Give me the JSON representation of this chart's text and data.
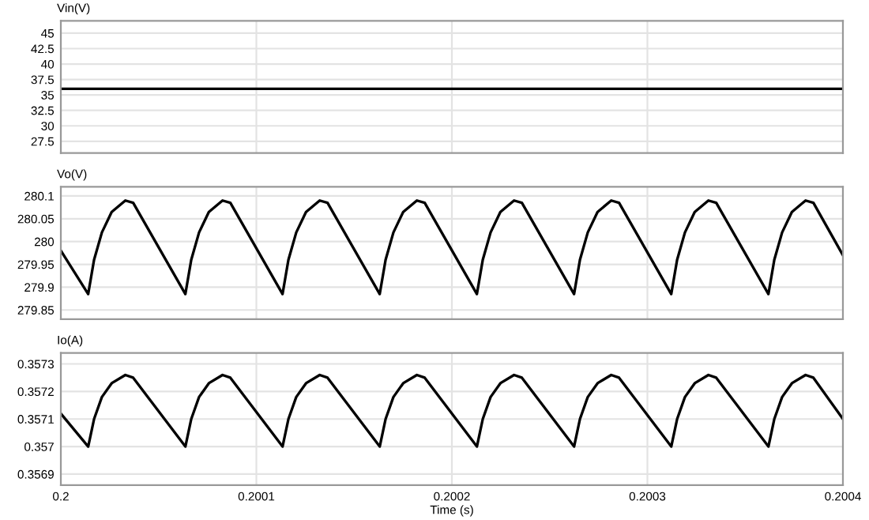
{
  "chart_data": [
    {
      "type": "line",
      "title": "Vin(V)",
      "x": [
        0.2,
        0.2004
      ],
      "series": [
        {
          "color": "#000000",
          "values": [
            36,
            36
          ]
        }
      ],
      "xlim": [
        0.2,
        0.2004
      ],
      "xticks": [
        0.2,
        0.2001,
        0.2002,
        0.2003,
        0.2004
      ],
      "ylim": [
        25.6,
        47
      ],
      "yticks": [
        27.5,
        30,
        32.5,
        35,
        37.5,
        40,
        42.5,
        45
      ],
      "grid": true,
      "tick_labels": "y",
      "marker": "none",
      "line_style": "solid"
    },
    {
      "type": "line",
      "title": "Vo(V)",
      "x": [
        0.2,
        0.200014,
        0.200017,
        0.200021,
        0.200026,
        0.200033,
        0.200037,
        0.2000637,
        0.2000667,
        0.2000707,
        0.2000757,
        0.2000827,
        0.2000867,
        0.2001134,
        0.2001164,
        0.2001204,
        0.2001254,
        0.2001324,
        0.2001364,
        0.2001631,
        0.2001661,
        0.2001701,
        0.2001751,
        0.2001821,
        0.2001861,
        0.2002128,
        0.2002158,
        0.2002198,
        0.2002248,
        0.2002318,
        0.2002358,
        0.2002625,
        0.2002655,
        0.2002695,
        0.2002745,
        0.2002815,
        0.2002855,
        0.2003122,
        0.2003152,
        0.2003192,
        0.2003242,
        0.2003312,
        0.2003352,
        0.2003619,
        0.2003649,
        0.2003689,
        0.2003739,
        0.2003809,
        0.2003849,
        0.2004
      ],
      "series": [
        {
          "color": "#000000",
          "values": [
            279.98,
            279.885,
            279.96,
            280.02,
            280.065,
            280.09,
            280.085,
            279.885,
            279.96,
            280.02,
            280.065,
            280.09,
            280.085,
            279.885,
            279.96,
            280.02,
            280.065,
            280.09,
            280.085,
            279.885,
            279.96,
            280.02,
            280.065,
            280.09,
            280.085,
            279.885,
            279.96,
            280.02,
            280.065,
            280.09,
            280.085,
            279.885,
            279.96,
            280.02,
            280.065,
            280.09,
            280.085,
            279.885,
            279.96,
            280.02,
            280.065,
            280.09,
            280.085,
            279.885,
            279.96,
            280.02,
            280.065,
            280.09,
            280.085,
            279.97
          ]
        }
      ],
      "xlim": [
        0.2,
        0.2004
      ],
      "xticks": [
        0.2,
        0.2001,
        0.2002,
        0.2003,
        0.2004
      ],
      "ylim": [
        279.83,
        280.12
      ],
      "yticks": [
        279.85,
        279.9,
        279.95,
        280,
        280.05,
        280.1
      ],
      "grid": true,
      "tick_labels": "y",
      "marker": "none",
      "line_style": "solid"
    },
    {
      "type": "line",
      "title": "Io(A)",
      "xlabel": "Time (s)",
      "x": [
        0.2,
        0.200014,
        0.200017,
        0.200021,
        0.200026,
        0.200033,
        0.200037,
        0.2000637,
        0.2000667,
        0.2000707,
        0.2000757,
        0.2000827,
        0.2000867,
        0.2001134,
        0.2001164,
        0.2001204,
        0.2001254,
        0.2001324,
        0.2001364,
        0.2001631,
        0.2001661,
        0.2001701,
        0.2001751,
        0.2001821,
        0.2001861,
        0.2002128,
        0.2002158,
        0.2002198,
        0.2002248,
        0.2002318,
        0.2002358,
        0.2002625,
        0.2002655,
        0.2002695,
        0.2002745,
        0.2002815,
        0.2002855,
        0.2003122,
        0.2003152,
        0.2003192,
        0.2003242,
        0.2003312,
        0.2003352,
        0.2003619,
        0.2003649,
        0.2003689,
        0.2003739,
        0.2003809,
        0.2003849,
        0.2004
      ],
      "series": [
        {
          "color": "#000000",
          "values": [
            0.35712,
            0.357,
            0.3571,
            0.35718,
            0.35723,
            0.35726,
            0.35725,
            0.357,
            0.3571,
            0.35718,
            0.35723,
            0.35726,
            0.35725,
            0.357,
            0.3571,
            0.35718,
            0.35723,
            0.35726,
            0.35725,
            0.357,
            0.3571,
            0.35718,
            0.35723,
            0.35726,
            0.35725,
            0.357,
            0.3571,
            0.35718,
            0.35723,
            0.35726,
            0.35725,
            0.357,
            0.3571,
            0.35718,
            0.35723,
            0.35726,
            0.35725,
            0.357,
            0.3571,
            0.35718,
            0.35723,
            0.35726,
            0.35725,
            0.357,
            0.3571,
            0.35718,
            0.35723,
            0.35726,
            0.35725,
            0.3571
          ]
        }
      ],
      "xlim": [
        0.2,
        0.2004
      ],
      "xticks": [
        0.2,
        0.2001,
        0.2002,
        0.2003,
        0.2004
      ],
      "ylim": [
        0.35686,
        0.35734
      ],
      "yticks": [
        0.3569,
        0.357,
        0.3571,
        0.3572,
        0.3573
      ],
      "grid": true,
      "marker": "none",
      "line_style": "solid"
    }
  ]
}
